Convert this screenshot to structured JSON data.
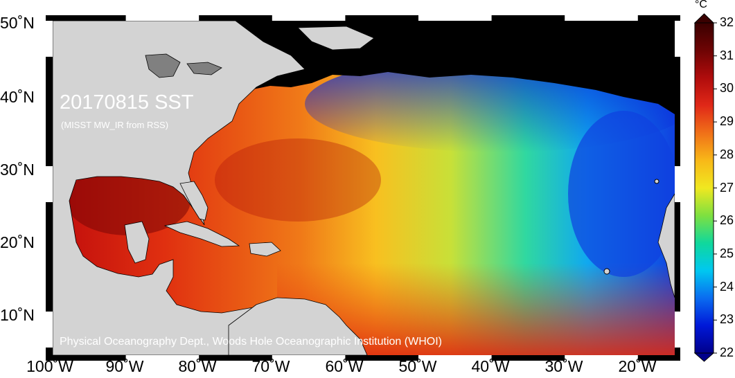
{
  "map": {
    "title": "20170815 SST",
    "subtitle": "(MISST MW_IR from RSS)",
    "credit": "Physical Oceanography Dept., Woods Hole Oceanographic Institution (WHOI)",
    "variable": "sea surface temperature",
    "extent": {
      "lon_min": -100,
      "lon_max": -15,
      "lat_min": 5,
      "lat_max": 51
    },
    "lat_labels": [
      "50˚N",
      "40˚N",
      "30˚N",
      "20˚N",
      "10˚N"
    ],
    "lon_labels": [
      "100˚W",
      "90˚W",
      "80˚W",
      "70˚W",
      "60˚W",
      "50˚W",
      "40˚W",
      "30˚W",
      "20˚W"
    ],
    "land_color": "#d3d3d3",
    "no_data_color": "#000000"
  },
  "colorbar": {
    "unit": "°C",
    "min": 22,
    "max": 32,
    "ticks": [
      "32",
      "31",
      "30",
      "29",
      "28",
      "27",
      "26",
      "25",
      "24",
      "23",
      "22"
    ],
    "colors": [
      "#00008c",
      "#0018d8",
      "#0a6cf0",
      "#00c8f0",
      "#10d89c",
      "#7ee040",
      "#f0e820",
      "#f8b818",
      "#f07018",
      "#e02818",
      "#b00c0c",
      "#6e0404",
      "#3a0000"
    ]
  }
}
